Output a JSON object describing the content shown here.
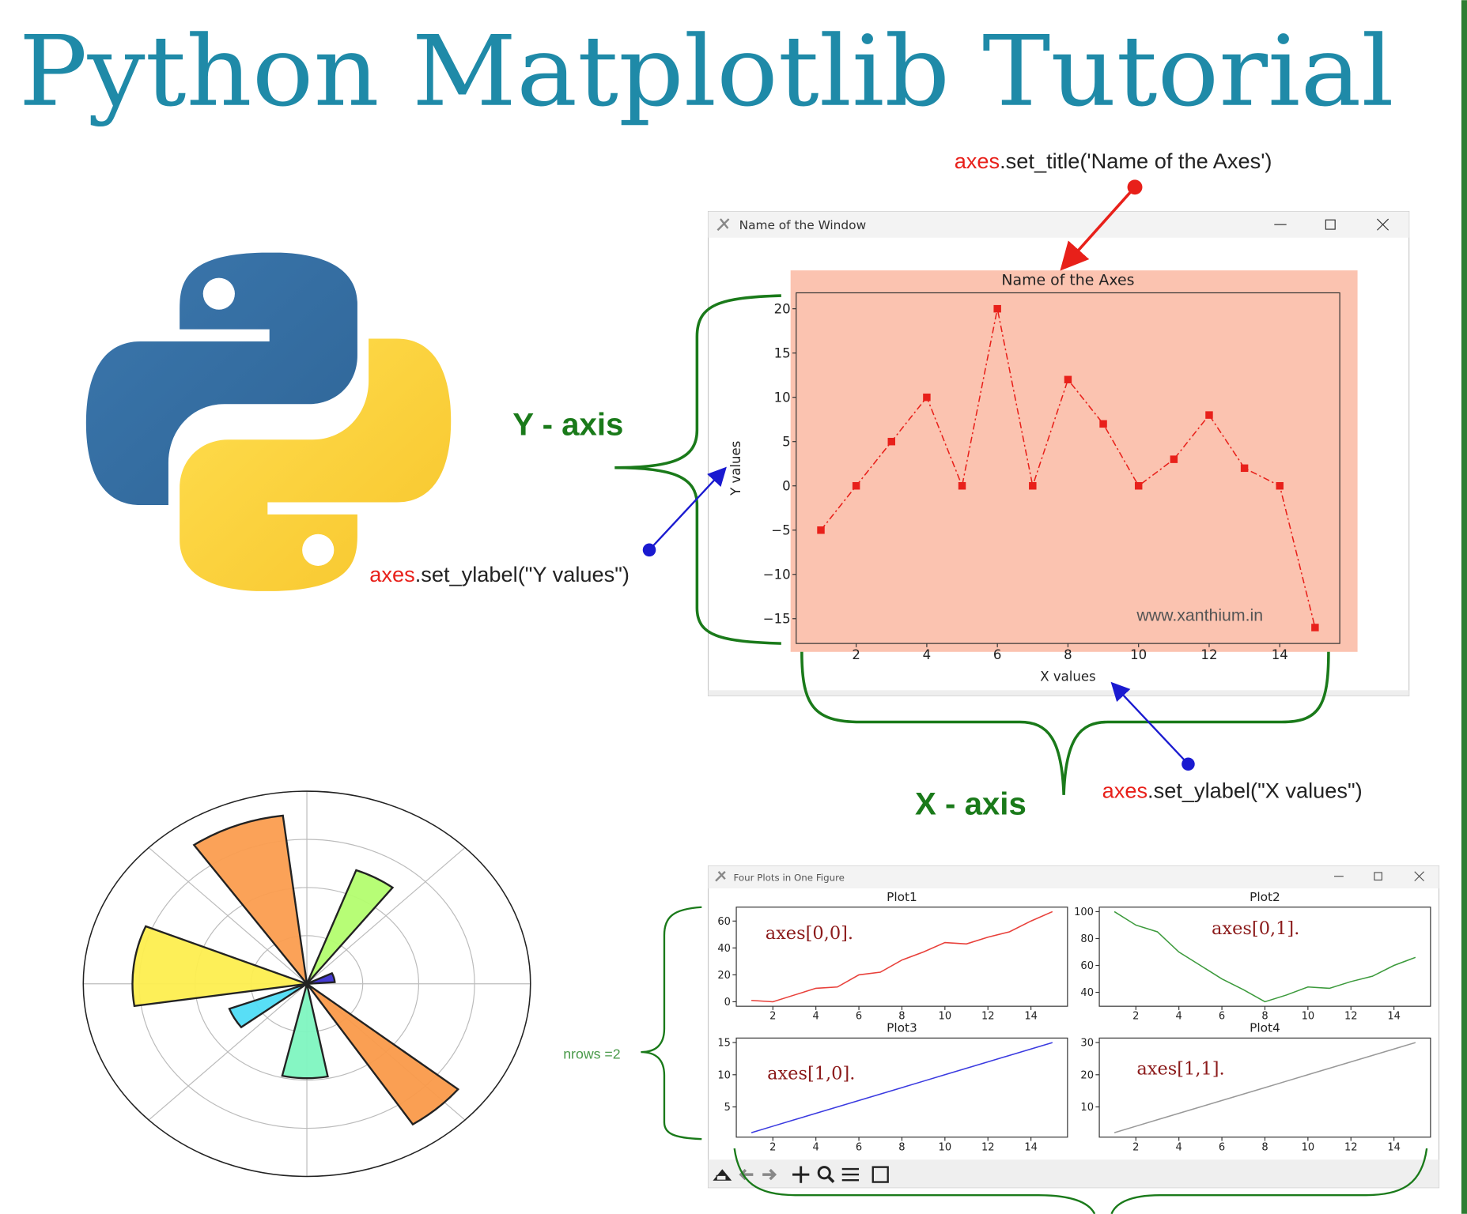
{
  "title": "Python Matplotlib Tutorial",
  "annotations": {
    "set_title": {
      "object": "axes",
      "method": ".set_title('Name of the Axes')"
    },
    "set_ylabel": {
      "object": "axes",
      "method": ".set_ylabel(\"Y values\")"
    },
    "set_xlabel": {
      "object": "axes",
      "method": ".set_ylabel(\"X values\")"
    },
    "y_axis": "Y - axis",
    "x_axis": "X - axis",
    "nrows": "nrows =2"
  },
  "main_window": {
    "title": "Name of the Window"
  },
  "subplots_window": {
    "title": "Four Plots in One Figure"
  },
  "chart_data": [
    {
      "type": "line",
      "title": "Name of the Axes",
      "x_label": "X values",
      "y_label": "Y values",
      "watermark": "www.xanthium.in",
      "background": "#fbc3b0",
      "x": [
        1,
        2,
        3,
        4,
        5,
        6,
        7,
        8,
        9,
        10,
        11,
        12,
        13,
        14,
        15
      ],
      "series": [
        {
          "color": "#e8201a",
          "marker": "square",
          "linestyle": "dash-dot",
          "values": [
            -5,
            0,
            5,
            10,
            0,
            20,
            0,
            12,
            7,
            0,
            3,
            8,
            2,
            0,
            -16
          ]
        }
      ],
      "xlim": [
        0.3,
        15.7
      ],
      "xticks": [
        2,
        4,
        6,
        8,
        10,
        12,
        14
      ],
      "ylim": [
        -17.8,
        21.8
      ],
      "yticks": [
        {
          "value": -15,
          "label": "−15"
        },
        {
          "value": -10,
          "label": "−10"
        },
        {
          "value": -5,
          "label": "−5"
        },
        0,
        5,
        10,
        15,
        20
      ]
    },
    {
      "type": "line",
      "title": "Plot1",
      "annotation": "axes[0,0].",
      "x": [
        1,
        2,
        3,
        4,
        5,
        6,
        7,
        8,
        9,
        10,
        11,
        12,
        13,
        14,
        15
      ],
      "series": [
        {
          "color": "#e8403a",
          "values": [
            1,
            0,
            5,
            10,
            11,
            20,
            22,
            31,
            37,
            44,
            43,
            48,
            52,
            60,
            67
          ]
        }
      ],
      "xlim": [
        0.3,
        15.7
      ],
      "xticks": [
        2,
        4,
        6,
        8,
        10,
        12,
        14
      ],
      "ylim": [
        -3.35,
        70.35
      ],
      "yticks": [
        0,
        20,
        40,
        60
      ]
    },
    {
      "type": "line",
      "title": "Plot2",
      "annotation": "axes[0,1].",
      "x": [
        1,
        2,
        3,
        4,
        5,
        6,
        7,
        8,
        9,
        10,
        11,
        12,
        13,
        14,
        15
      ],
      "series": [
        {
          "color": "#3c9a3c",
          "values": [
            100,
            90,
            85,
            70,
            60,
            50,
            42,
            33,
            38,
            44,
            43,
            48,
            52,
            60,
            66
          ]
        }
      ],
      "xlim": [
        0.3,
        15.7
      ],
      "xticks": [
        2,
        4,
        6,
        8,
        10,
        12,
        14
      ],
      "ylim": [
        29.65,
        103.35
      ],
      "yticks": [
        40,
        60,
        80,
        100
      ]
    },
    {
      "type": "line",
      "title": "Plot3",
      "annotation": "axes[1,0].",
      "x": [
        1,
        2,
        3,
        4,
        5,
        6,
        7,
        8,
        9,
        10,
        11,
        12,
        13,
        14,
        15
      ],
      "series": [
        {
          "color": "#3a3ae0",
          "values": [
            1,
            2,
            3,
            4,
            5,
            6,
            7,
            8,
            9,
            10,
            11,
            12,
            13,
            14,
            15
          ]
        }
      ],
      "xlim": [
        0.3,
        15.7
      ],
      "xticks": [
        2,
        4,
        6,
        8,
        10,
        12,
        14
      ],
      "ylim": [
        0.3,
        15.7
      ],
      "yticks": [
        5,
        10,
        15
      ]
    },
    {
      "type": "line",
      "title": "Plot4",
      "annotation": "axes[1,1].",
      "x": [
        1,
        2,
        3,
        4,
        5,
        6,
        7,
        8,
        9,
        10,
        11,
        12,
        13,
        14,
        15
      ],
      "series": [
        {
          "color": "#999999",
          "values": [
            2,
            4,
            6,
            8,
            10,
            12,
            14,
            16,
            18,
            20,
            22,
            24,
            26,
            28,
            30
          ]
        }
      ],
      "xlim": [
        0.3,
        15.7
      ],
      "xticks": [
        2,
        4,
        6,
        8,
        10,
        12,
        14
      ],
      "ylim": [
        0.6,
        31.4
      ],
      "yticks": [
        10,
        20,
        30
      ]
    },
    {
      "type": "bar",
      "polar": true,
      "grid": true,
      "edgecolor": "#222222",
      "x": [
        111,
        61,
        173,
        15,
        209,
        269,
        312
      ],
      "widths": [
        28,
        17,
        31,
        22,
        17,
        24,
        18
      ],
      "values": [
        8.8,
        6.3,
        7.8,
        1.25,
        3.7,
        4.9,
        8.7
      ],
      "colors": [
        "#fb9d4f",
        "#b3fd6f",
        "#fdee4f",
        "#3a2fd0",
        "#4fdcf6",
        "#7ef5c0",
        "#fa9a4a"
      ],
      "ylim": [
        0,
        10
      ],
      "yticks": [
        2.5,
        5,
        7.5,
        10
      ],
      "xticks": [
        0,
        45,
        90,
        135,
        180,
        225,
        270,
        315
      ]
    }
  ]
}
